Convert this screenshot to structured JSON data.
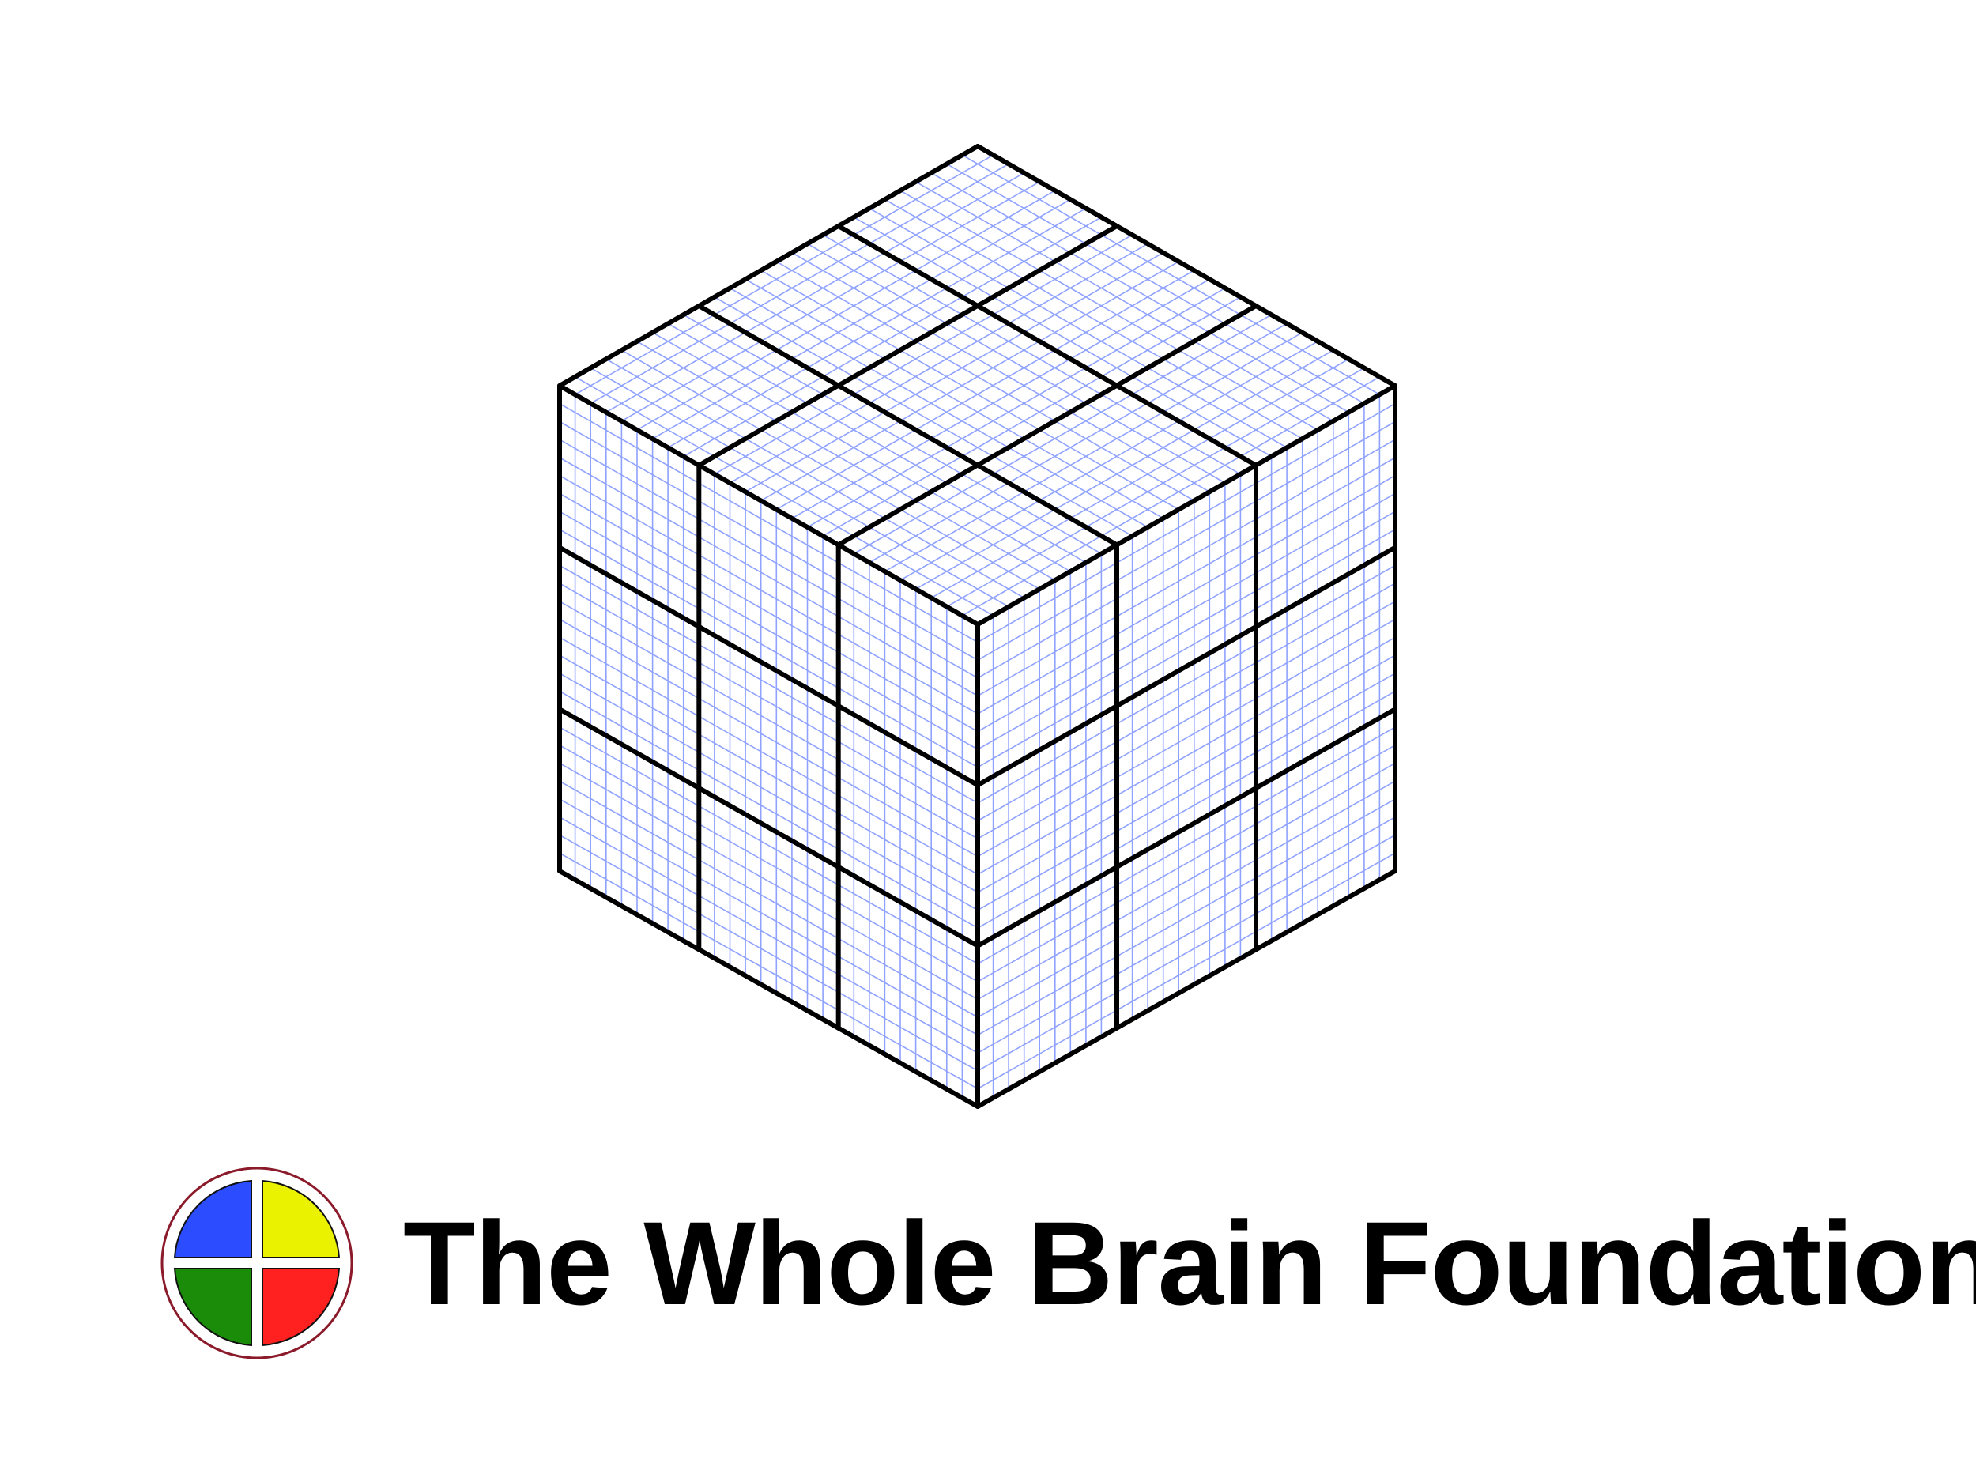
{
  "organization": {
    "name": "The Whole Brain Foundation"
  },
  "logo": {
    "quadrant_colors": {
      "top_left": "#2b4cff",
      "top_right": "#eaf200",
      "bottom_left": "#1a8c0a",
      "bottom_right": "#ff2020"
    },
    "ring_color": "#8b1a2b"
  },
  "cube": {
    "divisions_per_edge": 3,
    "fine_lines_per_cell": 8,
    "edge_color": "#000000",
    "grid_color": "#8fa2ff"
  }
}
